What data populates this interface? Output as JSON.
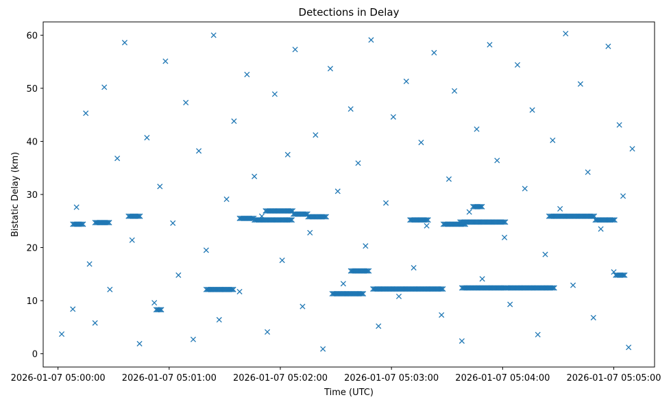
{
  "chart_data": {
    "type": "scatter",
    "title": "Detections in Delay",
    "xlabel": "Time (UTC)",
    "ylabel": "Bistatic Delay (km)",
    "marker": "x",
    "color": "#1f77b4",
    "grid": false,
    "xlim": [
      "2026-01-07 04:59:52",
      "2026-01-07 05:05:22"
    ],
    "ylim": [
      -2.5,
      62.5
    ],
    "x_ticks": [
      {
        "value": "2026-01-07 05:00:00",
        "label": "2026-01-07 05:00:00"
      },
      {
        "value": "2026-01-07 05:01:00",
        "label": "2026-01-07 05:01:00"
      },
      {
        "value": "2026-01-07 05:02:00",
        "label": "2026-01-07 05:02:00"
      },
      {
        "value": "2026-01-07 05:03:00",
        "label": "2026-01-07 05:03:00"
      },
      {
        "value": "2026-01-07 05:04:00",
        "label": "2026-01-07 05:04:00"
      },
      {
        "value": "2026-01-07 05:05:00",
        "label": "2026-01-07 05:05:00"
      }
    ],
    "y_ticks": [
      {
        "value": 0,
        "label": "0"
      },
      {
        "value": 10,
        "label": "10"
      },
      {
        "value": 20,
        "label": "20"
      },
      {
        "value": 30,
        "label": "30"
      },
      {
        "value": 40,
        "label": "40"
      },
      {
        "value": 50,
        "label": "50"
      },
      {
        "value": 60,
        "label": "60"
      }
    ],
    "series": [
      {
        "x": [
          "05:00:02",
          "05:00:08",
          "05:00:10",
          "05:00:15",
          "05:00:17",
          "05:00:20",
          "05:00:25",
          "05:00:28",
          "05:00:32",
          "05:00:36",
          "05:00:40",
          "05:00:44",
          "05:00:48",
          "05:00:52",
          "05:00:55",
          "05:00:58",
          "05:01:02",
          "05:01:05",
          "05:01:09",
          "05:01:13",
          "05:01:16",
          "05:01:20",
          "05:01:24",
          "05:01:27",
          "05:01:31",
          "05:01:35",
          "05:01:38",
          "05:01:42",
          "05:01:46",
          "05:01:50",
          "05:01:53",
          "05:01:57",
          "05:02:01",
          "05:02:04",
          "05:02:08",
          "05:02:12",
          "05:02:16",
          "05:02:19",
          "05:02:23",
          "05:02:27",
          "05:02:31",
          "05:02:34",
          "05:02:38",
          "05:02:42",
          "05:02:46",
          "05:02:49",
          "05:02:53",
          "05:02:57",
          "05:03:01",
          "05:03:04",
          "05:03:08",
          "05:03:12",
          "05:03:16",
          "05:03:19",
          "05:03:23",
          "05:03:27",
          "05:03:31",
          "05:03:34",
          "05:03:38",
          "05:03:42",
          "05:03:46",
          "05:03:49",
          "05:03:53",
          "05:03:57",
          "05:04:01",
          "05:04:04",
          "05:04:08",
          "05:04:12",
          "05:04:16",
          "05:04:19",
          "05:04:23",
          "05:04:27",
          "05:04:31",
          "05:04:34",
          "05:04:38",
          "05:04:42",
          "05:04:46",
          "05:04:49",
          "05:04:53",
          "05:04:57",
          "05:05:00",
          "05:05:03",
          "05:05:05",
          "05:05:08",
          "05:05:10"
        ],
        "y": [
          3.7,
          8.4,
          27.6,
          45.3,
          16.9,
          5.8,
          50.2,
          12.1,
          36.8,
          58.6,
          21.4,
          1.9,
          40.7,
          9.6,
          31.5,
          55.1,
          24.6,
          14.8,
          47.3,
          2.7,
          38.2,
          19.5,
          60.0,
          6.4,
          29.1,
          43.8,
          11.7,
          52.6,
          33.4,
          25.9,
          4.1,
          48.9,
          17.6,
          37.5,
          57.3,
          8.9,
          22.8,
          41.2,
          0.9,
          53.7,
          30.6,
          13.2,
          46.1,
          35.9,
          20.3,
          59.1,
          5.2,
          28.4,
          44.6,
          10.8,
          51.3,
          16.2,
          39.8,
          24.1,
          56.7,
          7.3,
          32.9,
          49.5,
          2.4,
          26.7,
          42.3,
          14.1,
          58.2,
          36.4,
          21.9,
          9.3,
          54.4,
          31.1,
          45.9,
          3.6,
          18.7,
          40.2,
          27.3,
          60.3,
          12.9,
          50.8,
          34.2,
          6.8,
          23.5,
          57.9,
          15.4,
          43.1,
          29.7,
          1.2,
          38.6
        ]
      }
    ],
    "clusters": [
      {
        "x_from": "05:00:08",
        "x_to": "05:00:14",
        "y": 24.4
      },
      {
        "x_from": "05:00:20",
        "x_to": "05:00:28",
        "y": 24.7
      },
      {
        "x_from": "05:00:38",
        "x_to": "05:00:45",
        "y": 25.9
      },
      {
        "x_from": "05:00:53",
        "x_to": "05:00:56",
        "y": 8.3
      },
      {
        "x_from": "05:01:20",
        "x_to": "05:01:35",
        "y": 12.1
      },
      {
        "x_from": "05:01:38",
        "x_to": "05:01:46",
        "y": 25.5
      },
      {
        "x_from": "05:01:46",
        "x_to": "05:02:07",
        "y": 25.2
      },
      {
        "x_from": "05:01:52",
        "x_to": "05:02:07",
        "y": 26.9
      },
      {
        "x_from": "05:02:07",
        "x_to": "05:02:15",
        "y": 26.3
      },
      {
        "x_from": "05:02:15",
        "x_to": "05:02:25",
        "y": 25.8
      },
      {
        "x_from": "05:02:28",
        "x_to": "05:02:45",
        "y": 11.3
      },
      {
        "x_from": "05:02:38",
        "x_to": "05:02:48",
        "y": 15.6
      },
      {
        "x_from": "05:02:50",
        "x_to": "05:03:28",
        "y": 12.2
      },
      {
        "x_from": "05:03:10",
        "x_to": "05:03:20",
        "y": 25.2
      },
      {
        "x_from": "05:03:28",
        "x_to": "05:03:40",
        "y": 24.4
      },
      {
        "x_from": "05:03:38",
        "x_to": "05:04:02",
        "y": 12.4
      },
      {
        "x_from": "05:03:37",
        "x_to": "05:04:02",
        "y": 24.8
      },
      {
        "x_from": "05:03:44",
        "x_to": "05:03:49",
        "y": 27.7
      },
      {
        "x_from": "05:04:02",
        "x_to": "05:04:28",
        "y": 12.4
      },
      {
        "x_from": "05:04:25",
        "x_to": "05:04:50",
        "y": 25.9
      },
      {
        "x_from": "05:04:50",
        "x_to": "05:05:01",
        "y": 25.2
      },
      {
        "x_from": "05:05:01",
        "x_to": "05:05:06",
        "y": 14.8
      }
    ]
  }
}
